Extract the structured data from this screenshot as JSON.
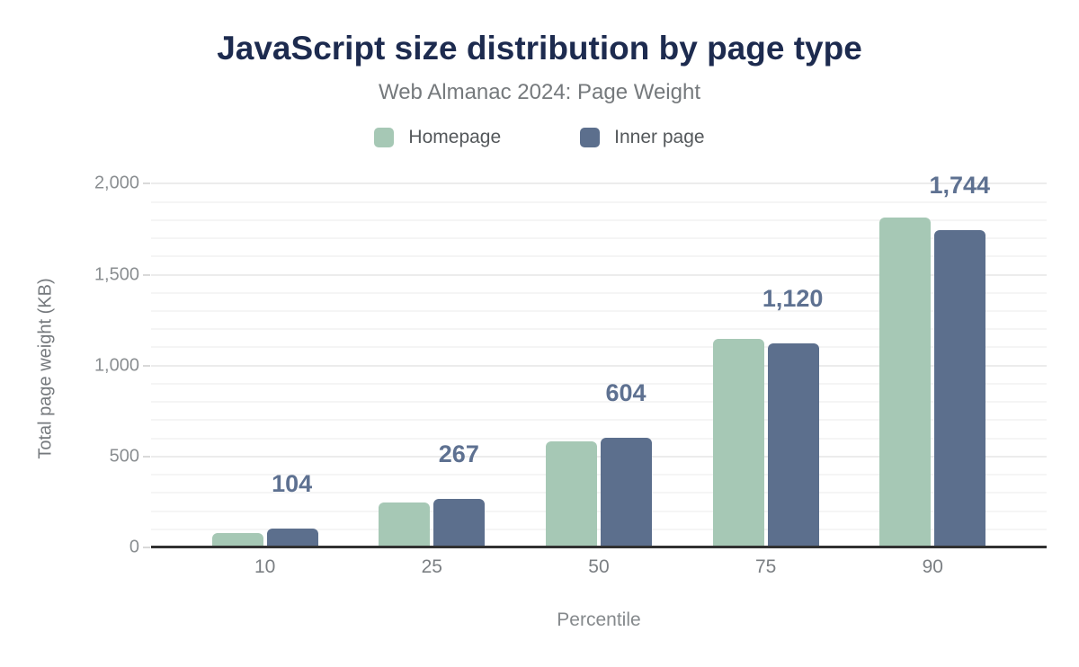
{
  "chart_data": {
    "type": "bar",
    "title": "JavaScript size distribution by page type",
    "subtitle": "Web Almanac 2024: Page Weight",
    "xlabel": "Percentile",
    "ylabel": "Total page weight (KB)",
    "categories": [
      "10",
      "25",
      "50",
      "75",
      "90"
    ],
    "series": [
      {
        "name": "Homepage",
        "color": "#a6c8b5",
        "values": [
          78,
          245,
          583,
          1148,
          1812
        ]
      },
      {
        "name": "Inner page",
        "color": "#5c6f8d",
        "values": [
          104,
          267,
          604,
          1120,
          1744
        ]
      }
    ],
    "data_labels": {
      "series": "Inner page",
      "values": [
        "104",
        "267",
        "604",
        "1,120",
        "1,744"
      ],
      "color": "#5e7191"
    },
    "ylim": [
      0,
      2150
    ],
    "yticks": [
      {
        "value": 0,
        "label": "0"
      },
      {
        "value": 500,
        "label": "500"
      },
      {
        "value": 1000,
        "label": "1,000"
      },
      {
        "value": 1500,
        "label": "1,500"
      },
      {
        "value": 2000,
        "label": "2,000"
      }
    ],
    "grid": {
      "minor_step": 100,
      "major_step": 500,
      "max": 2000
    },
    "legend_position": "top"
  },
  "colors": {
    "title": "#1d2b4f",
    "subtitle": "#75797c",
    "axis_line": "#313131",
    "homepage": "#a6c8b5",
    "inner_page": "#5c6f8d",
    "data_label": "#5e7191"
  }
}
